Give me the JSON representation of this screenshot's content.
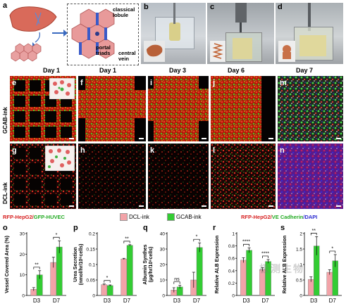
{
  "panels": {
    "a": "a",
    "b": "b",
    "c": "c",
    "d": "d",
    "e": "e",
    "f": "f",
    "g": "g",
    "h": "h",
    "i": "i",
    "j": "j",
    "k": "k",
    "l": "l",
    "m": "m",
    "n": "n",
    "o": "o",
    "p": "p",
    "q": "q",
    "r": "r",
    "s": "s"
  },
  "schematic": {
    "classical_lobule": "classical\nlobule",
    "portal_triads": "portal\ntriads",
    "central_vein": "central\nvein"
  },
  "days": {
    "e": "Day 1",
    "f": "Day 1",
    "i": "Day 3",
    "j": "Day 6",
    "m": "Day 7"
  },
  "rows": {
    "top": "GCAB-ink",
    "bottom": "DCL-ink"
  },
  "legend": {
    "left_red": "RFP-HepG2/",
    "left_green": "GFP-HUVEC",
    "dcl": "DCL-ink",
    "gcab": "GCAB-ink",
    "right_red": "RFP-HepG2/",
    "right_green": "VE Cadherin",
    "right_blue": "/DAPI"
  },
  "colors": {
    "dcl": "#f2a3a8",
    "gcab": "#33cc33",
    "red": "#d62020",
    "green": "#22aa22",
    "blue": "#2a2ad0"
  },
  "watermark": "极测生物",
  "chart_data": [
    {
      "type": "bar",
      "panel": "o",
      "ylabel": "Vessel Covered Area (%)",
      "categories": [
        "D3",
        "D7"
      ],
      "series": [
        {
          "name": "DCL-ink",
          "values": [
            3,
            16
          ]
        },
        {
          "name": "GCAB-ink",
          "values": [
            10,
            23.5
          ]
        }
      ],
      "errors": [
        [
          0.8,
          2.5
        ],
        [
          2,
          3
        ]
      ],
      "ylim": [
        0,
        30
      ],
      "yticks": [
        0,
        10,
        20,
        30
      ],
      "sig": [
        "**",
        "*"
      ]
    },
    {
      "type": "bar",
      "panel": "p",
      "ylabel": "Urea Secretion\n(nmol/hr/10⁶cells)",
      "categories": [
        "D3",
        "D7"
      ],
      "series": [
        {
          "name": "DCL-ink",
          "values": [
            0.035,
            0.118
          ]
        },
        {
          "name": "GCAB-ink",
          "values": [
            0.032,
            0.162
          ]
        }
      ],
      "errors": [
        [
          0.002,
          0.002
        ],
        [
          0.002,
          0.002
        ]
      ],
      "ylim": [
        0,
        0.2
      ],
      "yticks": [
        0,
        0.05,
        0.1,
        0.15,
        0.2
      ],
      "sig": [
        "*",
        "**"
      ]
    },
    {
      "type": "bar",
      "panel": "q",
      "ylabel": "Albumin Synthes\n(μg/hr/10⁶cells)",
      "categories": [
        "D3",
        "D7"
      ],
      "series": [
        {
          "name": "DCL-ink",
          "values": [
            3.5,
            10
          ]
        },
        {
          "name": "GCAB-ink",
          "values": [
            5.5,
            31
          ]
        }
      ],
      "errors": [
        [
          1.5,
          5
        ],
        [
          1,
          3
        ]
      ],
      "ylim": [
        0,
        40
      ],
      "yticks": [
        0,
        10,
        20,
        30,
        40
      ],
      "sig": [
        "ns",
        "*"
      ]
    },
    {
      "type": "bar",
      "panel": "r",
      "ylabel": "Relative ALB Expression",
      "categories": [
        "D3",
        "D7"
      ],
      "series": [
        {
          "name": "DCL-ink",
          "values": [
            0.57,
            0.42
          ]
        },
        {
          "name": "GCAB-ink",
          "values": [
            0.73,
            0.55
          ]
        }
      ],
      "errors": [
        [
          0.04,
          0.03
        ],
        [
          0.04,
          0.03
        ]
      ],
      "ylim": [
        0,
        1.0
      ],
      "yticks": [
        0,
        0.2,
        0.4,
        0.6,
        0.8,
        1.0
      ],
      "sig": [
        "****",
        "****"
      ]
    },
    {
      "type": "bar",
      "panel": "s",
      "ylabel": "Relative ALB Expression",
      "categories": [
        "D3",
        "D7"
      ],
      "series": [
        {
          "name": "DCL-ink",
          "values": [
            0.52,
            0.75
          ]
        },
        {
          "name": "GCAB-ink",
          "values": [
            1.6,
            1.12
          ]
        }
      ],
      "errors": [
        [
          0.08,
          0.08
        ],
        [
          0.3,
          0.2
        ]
      ],
      "ylim": [
        0,
        2.0
      ],
      "yticks": [
        0,
        0.5,
        1.0,
        1.5,
        2.0
      ],
      "sig": [
        "**",
        "*"
      ]
    }
  ]
}
